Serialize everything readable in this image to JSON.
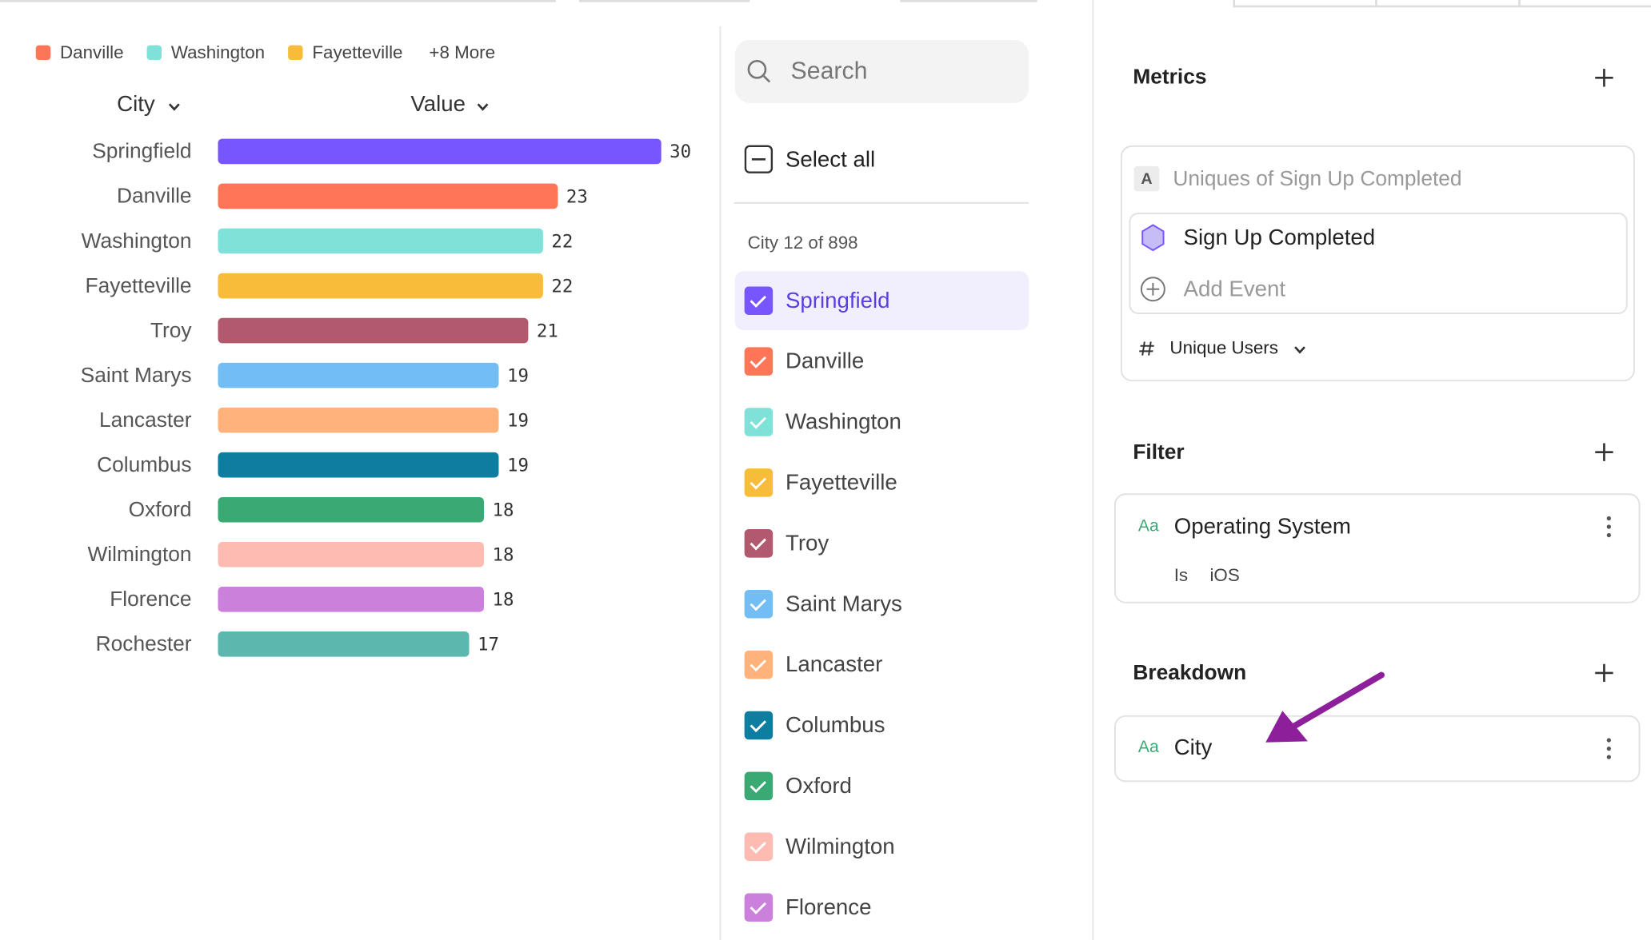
{
  "chart_data": {
    "type": "bar",
    "orientation": "horizontal",
    "column_headers": [
      "City",
      "Value"
    ],
    "categories": [
      "Springfield",
      "Danville",
      "Washington",
      "Fayetteville",
      "Troy",
      "Saint Marys",
      "Lancaster",
      "Columbus",
      "Oxford",
      "Wilmington",
      "Florence",
      "Rochester"
    ],
    "values": [
      30,
      23,
      22,
      22,
      21,
      19,
      19,
      19,
      18,
      18,
      18,
      17
    ],
    "colors": [
      "#7856ff",
      "#ff7557",
      "#80e1d9",
      "#f8bc3b",
      "#b2596e",
      "#72bef4",
      "#ffb27a",
      "#0d7ea0",
      "#3ba974",
      "#febbb2",
      "#cb80dc",
      "#5cb7af"
    ],
    "legend_more": "+8 More"
  },
  "selector": {
    "search_placeholder": "Search",
    "select_all": "Select all",
    "list_header": "City 12 of 898"
  },
  "metrics": {
    "title": "Metrics",
    "badge": "A",
    "label": "Uniques of Sign Up Completed",
    "event": "Sign Up Completed",
    "add_event": "Add Event",
    "measure": "Unique Users"
  },
  "filter": {
    "title": "Filter",
    "type_icon": "Aa",
    "property": "Operating System",
    "operator": "Is",
    "value": "iOS"
  },
  "breakdown": {
    "title": "Breakdown",
    "type_icon": "Aa",
    "property": "City"
  }
}
